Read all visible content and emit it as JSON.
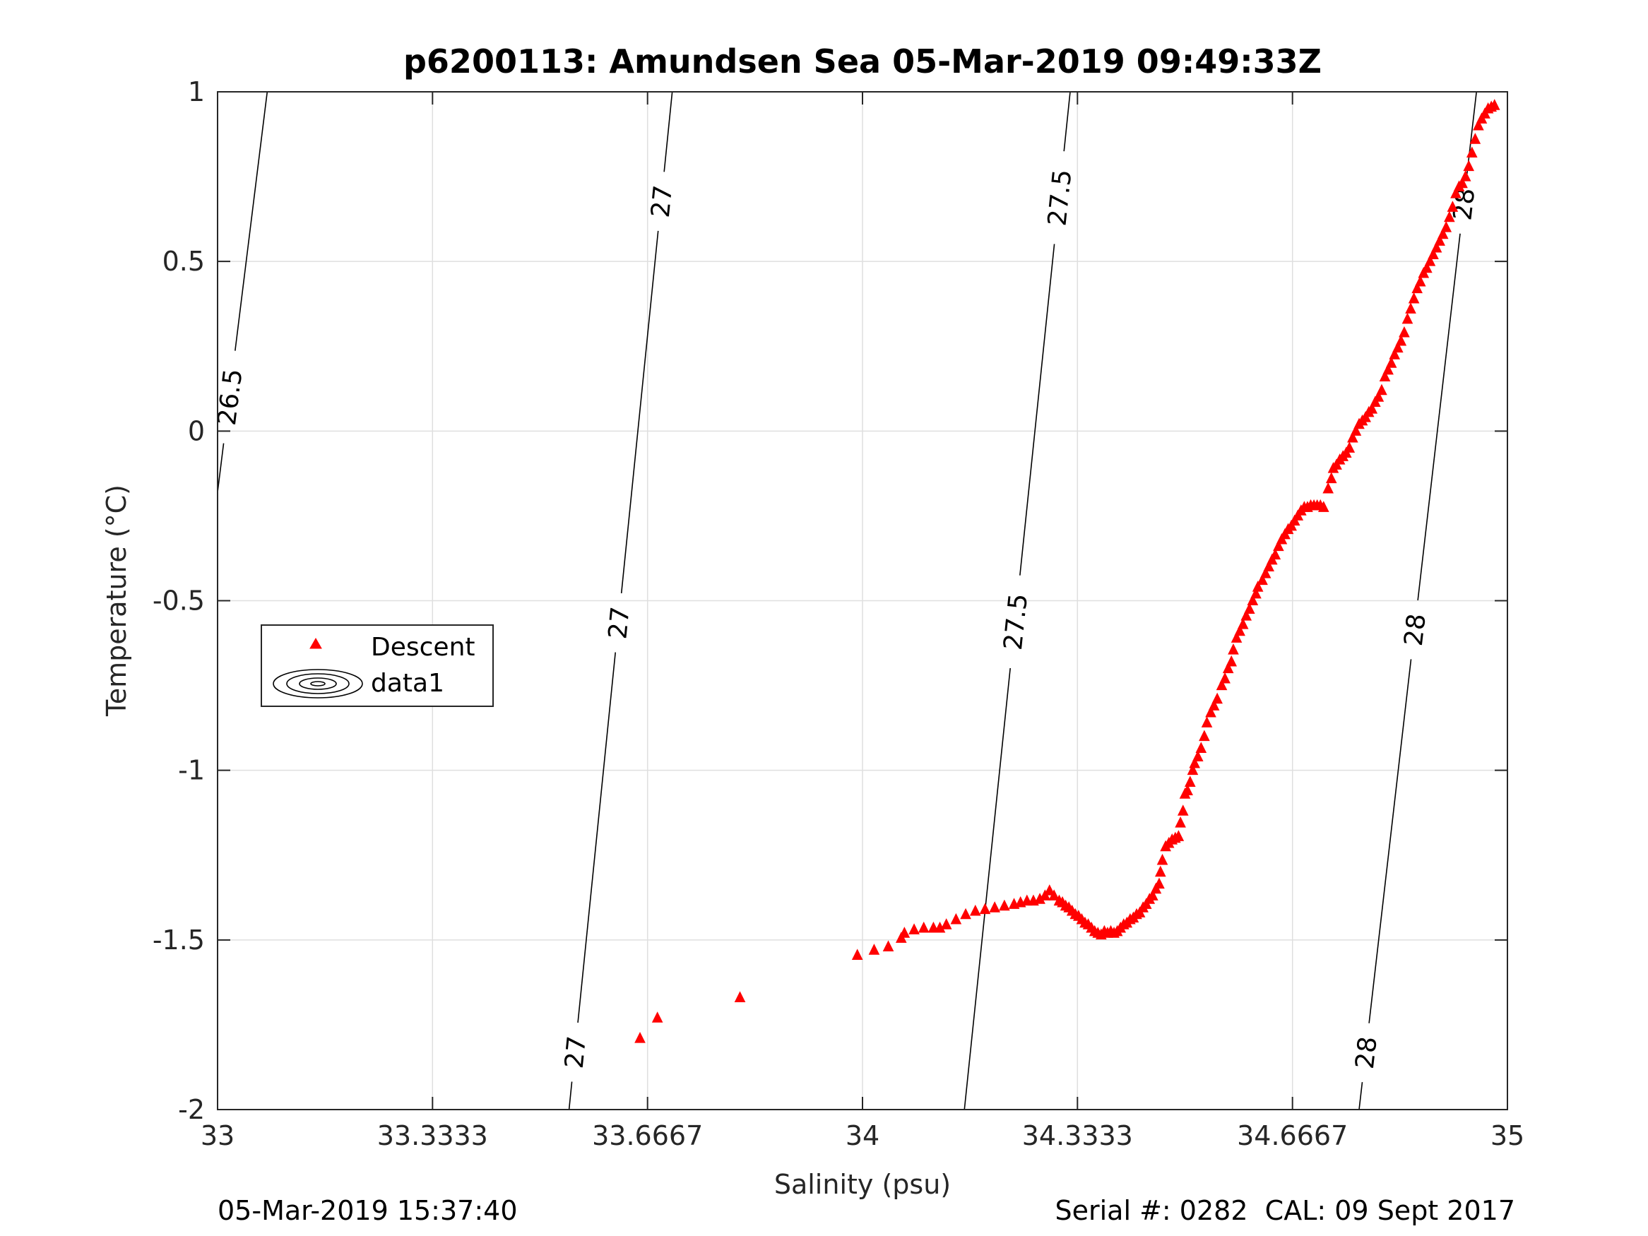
{
  "chart_data": {
    "type": "scatter",
    "title": "p6200113: Amundsen Sea 05-Mar-2019 09:49:33Z",
    "xlabel": "Salinity (psu)",
    "ylabel": "Temperature (°C)",
    "xlim": [
      33,
      35
    ],
    "ylim": [
      -2,
      1
    ],
    "grid": true,
    "x_ticks": [
      33,
      33.3333,
      33.6667,
      34,
      34.3333,
      34.6667,
      35
    ],
    "x_tick_labels": [
      "33",
      "33.3333",
      "33.6667",
      "34",
      "34.3333",
      "34.6667",
      "35"
    ],
    "y_ticks": [
      -2,
      -1.5,
      -1,
      -0.5,
      0,
      0.5,
      1
    ],
    "y_tick_labels": [
      "-2",
      "-1.5",
      "-1",
      "-0.5",
      "0",
      "0.5",
      "1"
    ],
    "legend": {
      "placement": "left-middle",
      "entries": [
        {
          "name": "Descent",
          "marker": "triangle",
          "color": "#ff0000"
        },
        {
          "name": "data1",
          "marker": "contour",
          "color": "#000000"
        }
      ]
    },
    "contours": [
      {
        "level": "26.5",
        "line": [
          [
            33.0,
            -0.18
          ],
          [
            33.077,
            1.0
          ]
        ],
        "labels": [
          {
            "text": "26.5",
            "x": 33.02,
            "y": 0.1
          }
        ]
      },
      {
        "level": "27",
        "line": [
          [
            33.545,
            -2.0
          ],
          [
            33.705,
            1.0
          ]
        ],
        "labels": [
          {
            "text": "27",
            "x": 33.55,
            "y": -1.83
          },
          {
            "text": "27",
            "x": 33.595,
            "y": -0.56
          },
          {
            "text": "27",
            "x": 33.673,
            "y": 0.68
          }
        ]
      },
      {
        "level": "27.5",
        "line": [
          [
            34.158,
            -2.0
          ],
          [
            34.322,
            1.0
          ]
        ],
        "labels": [
          {
            "text": "27.5",
            "x": 34.226,
            "y": -0.56
          },
          {
            "text": "27.5",
            "x": 34.295,
            "y": 0.69
          }
        ]
      },
      {
        "level": "28",
        "line": [
          [
            34.77,
            -2.0
          ],
          [
            34.952,
            1.0
          ]
        ],
        "labels": [
          {
            "text": "28",
            "x": 34.77,
            "y": -1.83
          },
          {
            "text": "28",
            "x": 34.83,
            "y": -0.58
          },
          {
            "text": "28",
            "x": 34.927,
            "y": 0.67
          }
        ]
      }
    ],
    "series": [
      {
        "name": "Descent",
        "marker": "triangle",
        "color": "#ff0000",
        "points": [
          [
            33.655,
            -1.79
          ],
          [
            33.682,
            -1.73
          ],
          [
            33.81,
            -1.67
          ],
          [
            33.992,
            -1.545
          ],
          [
            34.018,
            -1.53
          ],
          [
            34.04,
            -1.52
          ],
          [
            34.06,
            -1.495
          ],
          [
            34.065,
            -1.48
          ],
          [
            34.08,
            -1.47
          ],
          [
            34.095,
            -1.465
          ],
          [
            34.11,
            -1.465
          ],
          [
            34.12,
            -1.465
          ],
          [
            34.13,
            -1.455
          ],
          [
            34.145,
            -1.44
          ],
          [
            34.16,
            -1.425
          ],
          [
            34.175,
            -1.415
          ],
          [
            34.19,
            -1.41
          ],
          [
            34.205,
            -1.405
          ],
          [
            34.22,
            -1.4
          ],
          [
            34.235,
            -1.395
          ],
          [
            34.245,
            -1.39
          ],
          [
            34.255,
            -1.385
          ],
          [
            34.265,
            -1.385
          ],
          [
            34.275,
            -1.38
          ],
          [
            34.283,
            -1.37
          ],
          [
            34.29,
            -1.355
          ],
          [
            34.297,
            -1.37
          ],
          [
            34.305,
            -1.385
          ],
          [
            34.31,
            -1.39
          ],
          [
            34.315,
            -1.4
          ],
          [
            34.32,
            -1.405
          ],
          [
            34.325,
            -1.415
          ],
          [
            34.33,
            -1.425
          ],
          [
            34.335,
            -1.43
          ],
          [
            34.34,
            -1.44
          ],
          [
            34.345,
            -1.45
          ],
          [
            34.35,
            -1.455
          ],
          [
            34.355,
            -1.465
          ],
          [
            34.36,
            -1.475
          ],
          [
            34.365,
            -1.48
          ],
          [
            34.37,
            -1.485
          ],
          [
            34.375,
            -1.475
          ],
          [
            34.38,
            -1.48
          ],
          [
            34.385,
            -1.475
          ],
          [
            34.39,
            -1.48
          ],
          [
            34.395,
            -1.475
          ],
          [
            34.4,
            -1.465
          ],
          [
            34.405,
            -1.455
          ],
          [
            34.41,
            -1.45
          ],
          [
            34.415,
            -1.44
          ],
          [
            34.42,
            -1.435
          ],
          [
            34.425,
            -1.425
          ],
          [
            34.43,
            -1.42
          ],
          [
            34.435,
            -1.405
          ],
          [
            34.44,
            -1.395
          ],
          [
            34.445,
            -1.38
          ],
          [
            34.45,
            -1.37
          ],
          [
            34.455,
            -1.35
          ],
          [
            34.46,
            -1.335
          ],
          [
            34.462,
            -1.3
          ],
          [
            34.465,
            -1.265
          ],
          [
            34.47,
            -1.225
          ],
          [
            34.475,
            -1.215
          ],
          [
            34.48,
            -1.205
          ],
          [
            34.485,
            -1.2
          ],
          [
            34.49,
            -1.195
          ],
          [
            34.493,
            -1.155
          ],
          [
            34.497,
            -1.12
          ],
          [
            34.5,
            -1.07
          ],
          [
            34.504,
            -1.06
          ],
          [
            34.508,
            -1.035
          ],
          [
            34.512,
            -1.0
          ],
          [
            34.515,
            -0.98
          ],
          [
            34.52,
            -0.96
          ],
          [
            34.525,
            -0.935
          ],
          [
            34.53,
            -0.9
          ],
          [
            34.534,
            -0.86
          ],
          [
            34.54,
            -0.83
          ],
          [
            34.545,
            -0.81
          ],
          [
            34.55,
            -0.79
          ],
          [
            34.557,
            -0.75
          ],
          [
            34.562,
            -0.73
          ],
          [
            34.567,
            -0.7
          ],
          [
            34.572,
            -0.68
          ],
          [
            34.575,
            -0.645
          ],
          [
            34.58,
            -0.61
          ],
          [
            34.585,
            -0.59
          ],
          [
            34.59,
            -0.57
          ],
          [
            34.595,
            -0.545
          ],
          [
            34.6,
            -0.525
          ],
          [
            34.605,
            -0.5
          ],
          [
            34.61,
            -0.48
          ],
          [
            34.613,
            -0.46
          ],
          [
            34.62,
            -0.44
          ],
          [
            34.625,
            -0.42
          ],
          [
            34.63,
            -0.4
          ],
          [
            34.635,
            -0.38
          ],
          [
            34.64,
            -0.365
          ],
          [
            34.645,
            -0.34
          ],
          [
            34.65,
            -0.32
          ],
          [
            34.655,
            -0.305
          ],
          [
            34.66,
            -0.29
          ],
          [
            34.665,
            -0.28
          ],
          [
            34.67,
            -0.265
          ],
          [
            34.675,
            -0.25
          ],
          [
            34.68,
            -0.235
          ],
          [
            34.685,
            -0.225
          ],
          [
            34.69,
            -0.225
          ],
          [
            34.695,
            -0.22
          ],
          [
            34.7,
            -0.22
          ],
          [
            34.705,
            -0.22
          ],
          [
            34.71,
            -0.22
          ],
          [
            34.715,
            -0.225
          ],
          [
            34.722,
            -0.17
          ],
          [
            34.727,
            -0.14
          ],
          [
            34.73,
            -0.11
          ],
          [
            34.735,
            -0.1
          ],
          [
            34.74,
            -0.085
          ],
          [
            34.745,
            -0.075
          ],
          [
            34.75,
            -0.065
          ],
          [
            34.755,
            -0.05
          ],
          [
            34.76,
            -0.02
          ],
          [
            34.765,
            0.0
          ],
          [
            34.77,
            0.02
          ],
          [
            34.775,
            0.03
          ],
          [
            34.78,
            0.04
          ],
          [
            34.785,
            0.055
          ],
          [
            34.79,
            0.065
          ],
          [
            34.795,
            0.085
          ],
          [
            34.8,
            0.1
          ],
          [
            34.805,
            0.12
          ],
          [
            34.81,
            0.16
          ],
          [
            34.815,
            0.18
          ],
          [
            34.82,
            0.2
          ],
          [
            34.825,
            0.225
          ],
          [
            34.83,
            0.245
          ],
          [
            34.835,
            0.265
          ],
          [
            34.84,
            0.29
          ],
          [
            34.845,
            0.33
          ],
          [
            34.85,
            0.36
          ],
          [
            34.855,
            0.39
          ],
          [
            34.86,
            0.42
          ],
          [
            34.865,
            0.44
          ],
          [
            34.87,
            0.465
          ],
          [
            34.875,
            0.48
          ],
          [
            34.88,
            0.5
          ],
          [
            34.885,
            0.52
          ],
          [
            34.89,
            0.54
          ],
          [
            34.895,
            0.56
          ],
          [
            34.9,
            0.58
          ],
          [
            34.905,
            0.6
          ],
          [
            34.91,
            0.63
          ],
          [
            34.915,
            0.66
          ],
          [
            34.92,
            0.7
          ],
          [
            34.925,
            0.72
          ],
          [
            34.93,
            0.73
          ],
          [
            34.935,
            0.75
          ],
          [
            34.94,
            0.78
          ],
          [
            34.945,
            0.82
          ],
          [
            34.95,
            0.86
          ],
          [
            34.955,
            0.9
          ],
          [
            34.96,
            0.92
          ],
          [
            34.965,
            0.935
          ],
          [
            34.97,
            0.95
          ],
          [
            34.975,
            0.955
          ],
          [
            34.98,
            0.96
          ]
        ]
      }
    ]
  },
  "footer": {
    "left": "05-Mar-2019 15:37:40",
    "right": "Serial #: 0282  CAL: 09 Sept 2017"
  }
}
